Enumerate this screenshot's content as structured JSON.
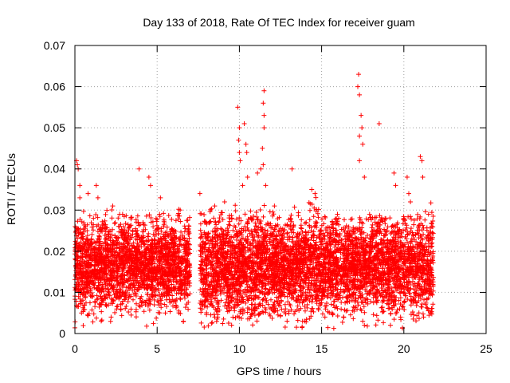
{
  "chart_data": {
    "type": "scatter",
    "title": "Day 133 of 2018, Rate Of TEC Index for receiver guam",
    "xlabel": "GPS time / hours",
    "ylabel": "ROTI / TECUs",
    "xlim": [
      0,
      25
    ],
    "ylim": [
      0,
      0.07
    ],
    "x_ticks": [
      0,
      5,
      10,
      15,
      20,
      25
    ],
    "x_tick_labels": [
      "0",
      "5",
      "10",
      "15",
      "20",
      "25"
    ],
    "y_ticks": [
      0,
      0.01,
      0.02,
      0.03,
      0.04,
      0.05,
      0.06,
      0.07
    ],
    "y_tick_labels": [
      "0",
      "0.01",
      "0.02",
      "0.03",
      "0.04",
      "0.05",
      "0.06",
      "0.07"
    ],
    "grid": true,
    "marker": "+",
    "series": [
      {
        "color": "#ff0000",
        "segments": [
          {
            "x_start": 0.0,
            "x_end": 7.0,
            "y_low": 0.004,
            "y_high": 0.029
          },
          {
            "x_start": 7.6,
            "x_end": 21.8,
            "y_low": 0.003,
            "y_high": 0.03
          }
        ],
        "points": [
          [
            0.1,
            0.042
          ],
          [
            0.15,
            0.041
          ],
          [
            0.2,
            0.04
          ],
          [
            0.3,
            0.036
          ],
          [
            0.3,
            0.033
          ],
          [
            0.8,
            0.034
          ],
          [
            1.3,
            0.036
          ],
          [
            1.4,
            0.033
          ],
          [
            2.3,
            0.031
          ],
          [
            2.9,
            0.029
          ],
          [
            3.9,
            0.04
          ],
          [
            4.5,
            0.038
          ],
          [
            4.6,
            0.036
          ],
          [
            5.2,
            0.033
          ],
          [
            6.4,
            0.03
          ],
          [
            7.6,
            0.034
          ],
          [
            8.5,
            0.031
          ],
          [
            9.1,
            0.032
          ],
          [
            9.9,
            0.055
          ],
          [
            10.0,
            0.05
          ],
          [
            9.95,
            0.047
          ],
          [
            10.0,
            0.044
          ],
          [
            10.05,
            0.042
          ],
          [
            10.3,
            0.051
          ],
          [
            10.4,
            0.046
          ],
          [
            10.45,
            0.044
          ],
          [
            10.2,
            0.036
          ],
          [
            10.5,
            0.038
          ],
          [
            11.1,
            0.039
          ],
          [
            11.3,
            0.04
          ],
          [
            11.5,
            0.059
          ],
          [
            11.45,
            0.056
          ],
          [
            11.5,
            0.053
          ],
          [
            11.5,
            0.05
          ],
          [
            11.4,
            0.045
          ],
          [
            11.45,
            0.041
          ],
          [
            11.6,
            0.036
          ],
          [
            13.2,
            0.04
          ],
          [
            14.4,
            0.035
          ],
          [
            14.6,
            0.034
          ],
          [
            17.25,
            0.063
          ],
          [
            17.2,
            0.06
          ],
          [
            17.3,
            0.058
          ],
          [
            17.4,
            0.053
          ],
          [
            17.45,
            0.05
          ],
          [
            17.3,
            0.048
          ],
          [
            17.5,
            0.046
          ],
          [
            17.3,
            0.042
          ],
          [
            17.6,
            0.038
          ],
          [
            18.5,
            0.051
          ],
          [
            19.4,
            0.039
          ],
          [
            19.5,
            0.036
          ],
          [
            20.2,
            0.038
          ],
          [
            20.3,
            0.034
          ],
          [
            20.4,
            0.032
          ],
          [
            21.0,
            0.043
          ],
          [
            21.1,
            0.042
          ],
          [
            21.15,
            0.038
          ],
          [
            21.5,
            0.029
          ],
          [
            21.7,
            0.026
          ],
          [
            0.4,
            0.005
          ],
          [
            2.2,
            0.004
          ],
          [
            5.5,
            0.005
          ],
          [
            6.6,
            0.003
          ],
          [
            17.5,
            0.003
          ],
          [
            17.6,
            0.002
          ],
          [
            19.8,
            0.004
          ],
          [
            21.2,
            0.004
          ],
          [
            12.9,
            0.003
          ],
          [
            8.5,
            0.004
          ]
        ]
      }
    ]
  }
}
